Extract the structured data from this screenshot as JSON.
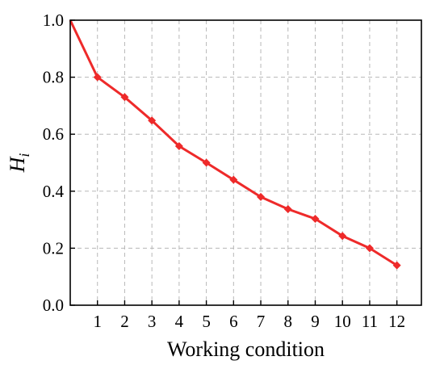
{
  "chart_data": {
    "type": "line",
    "title": "",
    "xlabel": "Working condition",
    "ylabel": "H",
    "ylabel_subscript": "i",
    "x": [
      0,
      1,
      2,
      3,
      4,
      5,
      6,
      7,
      8,
      9,
      10,
      11,
      12
    ],
    "series": [
      {
        "values": [
          1.0,
          0.8,
          0.73,
          0.648,
          0.558,
          0.5,
          0.44,
          0.38,
          0.337,
          0.303,
          0.243,
          0.2,
          0.14
        ],
        "color": "#ee2a2a",
        "marker": "diamond"
      }
    ],
    "xlim": [
      0,
      12.9
    ],
    "ylim": [
      0,
      1.0
    ],
    "xticks": [
      "1",
      "2",
      "3",
      "4",
      "5",
      "6",
      "7",
      "8",
      "9",
      "10",
      "11",
      "12"
    ],
    "yticks": [
      "0.0",
      "0.2",
      "0.4",
      "0.6",
      "0.8",
      "1.0"
    ],
    "ytick_values": [
      0,
      0.2,
      0.4,
      0.6,
      0.8,
      1.0
    ],
    "grid": true,
    "grid_style": "dashed",
    "legend": "none"
  }
}
